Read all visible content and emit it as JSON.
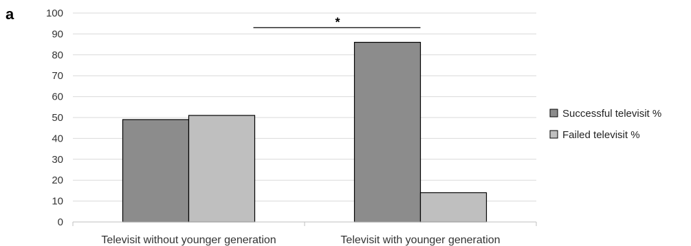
{
  "panel_label": "a",
  "chart_data": {
    "type": "bar",
    "title": "",
    "xlabel": "",
    "ylabel": "",
    "ylim": [
      0,
      100
    ],
    "yticks": [
      0,
      10,
      20,
      30,
      40,
      50,
      60,
      70,
      80,
      90,
      100
    ],
    "grid": true,
    "legend_position": "right",
    "categories": [
      "Televisit without younger generation",
      "Televisit with younger generation"
    ],
    "series": [
      {
        "name": "Successful televisit %",
        "values": [
          49,
          86
        ],
        "color": "#8c8c8c"
      },
      {
        "name": "Failed televisit %",
        "values": [
          51,
          14
        ],
        "color": "#bfbfbf"
      }
    ],
    "annotations": [
      {
        "text": "*",
        "type": "significance-bracket",
        "from_category": 0,
        "to_category": 1,
        "level": 93
      }
    ]
  }
}
